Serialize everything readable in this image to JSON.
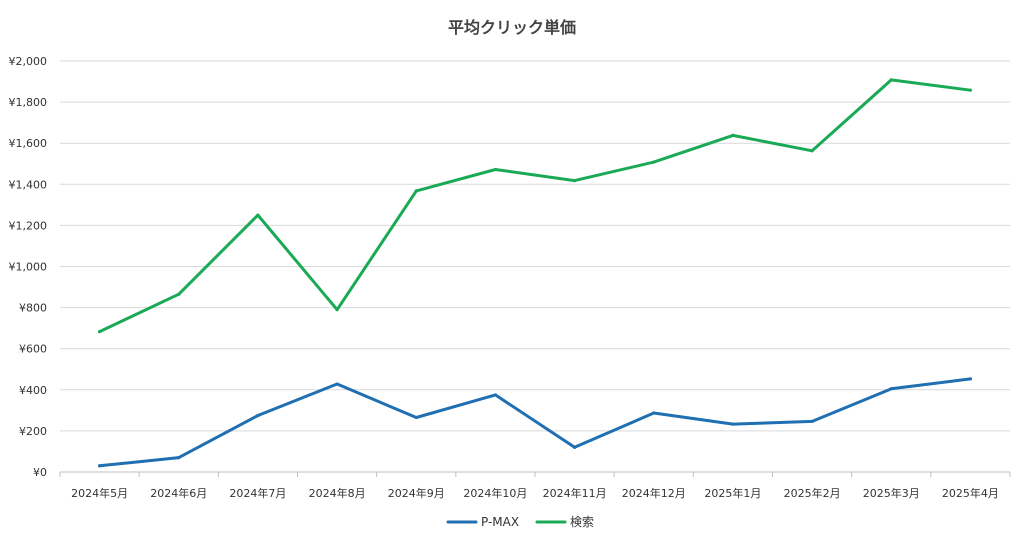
{
  "chart_data": {
    "type": "line",
    "title": "平均クリック単価",
    "categories": [
      "2024年5月",
      "2024年6月",
      "2024年7月",
      "2024年8月",
      "2024年9月",
      "2024年10月",
      "2024年11月",
      "2024年12月",
      "2025年1月",
      "2025年2月",
      "2025年3月",
      "2025年4月"
    ],
    "y_ticks": [
      "¥0",
      "¥200",
      "¥400",
      "¥600",
      "¥800",
      "¥1,000",
      "¥1,200",
      "¥1,400",
      "¥1,600",
      "¥1,800",
      "¥2,000"
    ],
    "ylim": [
      0,
      2000
    ],
    "ystep": 200,
    "grid": true,
    "legend_position": "bottom",
    "series": [
      {
        "name": "P-MAX",
        "color": "#1f6fb2",
        "values": [
          30,
          70,
          275,
          428,
          265,
          375,
          120,
          287,
          233,
          246,
          405,
          453
        ]
      },
      {
        "name": "検索",
        "color": "#1aaa55",
        "values": [
          683,
          865,
          1250,
          790,
          1368,
          1472,
          1418,
          1508,
          1638,
          1563,
          1908,
          1858
        ]
      }
    ]
  }
}
